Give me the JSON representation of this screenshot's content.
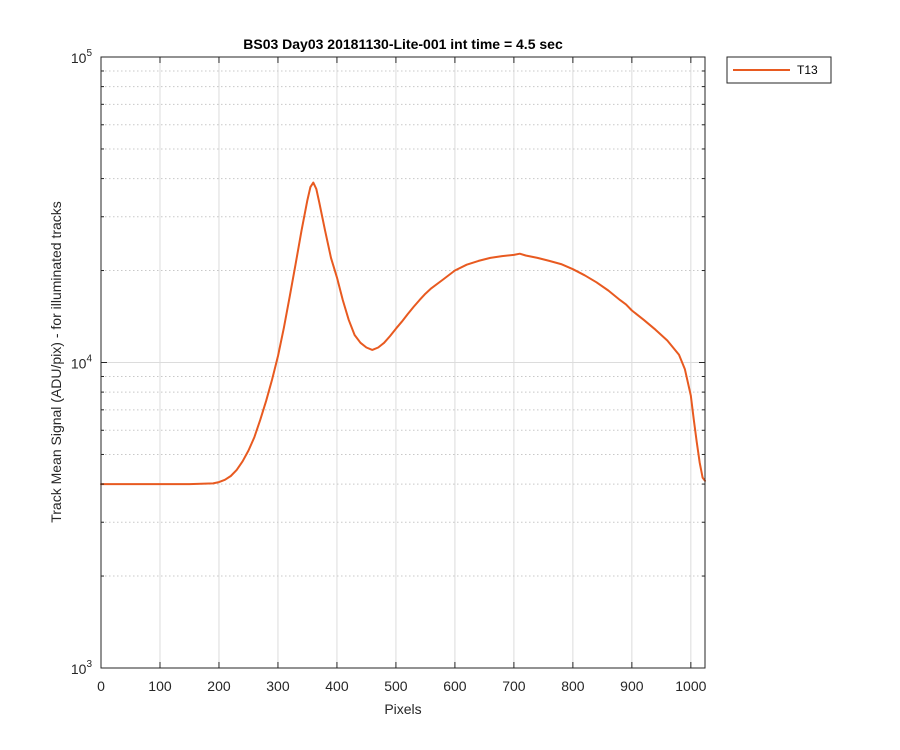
{
  "chart_data": {
    "type": "line",
    "title": "BS03 Day03 20181130-Lite-001 int time = 4.5 sec",
    "xlabel": "Pixels",
    "ylabel": "Track Mean Signal (ADU/pix) - for illuminated tracks",
    "xlim": [
      0,
      1024
    ],
    "ylim": [
      1000,
      100000
    ],
    "yscale": "log",
    "grid": true,
    "minor_grid": true,
    "legend_position": "outside-top-right",
    "x_ticks": [
      "0",
      "100",
      "200",
      "300",
      "400",
      "500",
      "600",
      "700",
      "800",
      "900",
      "1000"
    ],
    "y_ticks": [
      {
        "value": 1000,
        "base": "10",
        "exp": "3"
      },
      {
        "value": 10000,
        "base": "10",
        "exp": "4"
      },
      {
        "value": 100000,
        "base": "10",
        "exp": "5"
      }
    ],
    "series": [
      {
        "name": "T13",
        "color": "#e85a20",
        "x": [
          0,
          50,
          100,
          150,
          190,
          200,
          210,
          220,
          230,
          240,
          250,
          260,
          270,
          280,
          290,
          300,
          310,
          320,
          330,
          340,
          350,
          355,
          360,
          365,
          370,
          380,
          390,
          400,
          410,
          420,
          430,
          440,
          450,
          460,
          470,
          480,
          490,
          500,
          510,
          520,
          530,
          540,
          550,
          560,
          580,
          600,
          620,
          640,
          660,
          680,
          700,
          710,
          720,
          740,
          760,
          780,
          800,
          820,
          840,
          860,
          880,
          890,
          900,
          920,
          940,
          960,
          980,
          990,
          1000,
          1005,
          1010,
          1015,
          1020,
          1024
        ],
        "y": [
          4000,
          4000,
          4000,
          4000,
          4020,
          4060,
          4130,
          4250,
          4450,
          4750,
          5150,
          5700,
          6500,
          7500,
          8800,
          10500,
          13000,
          16500,
          21000,
          27000,
          34000,
          37500,
          38800,
          37000,
          33500,
          27000,
          22000,
          19000,
          16000,
          13800,
          12300,
          11600,
          11200,
          11000,
          11200,
          11600,
          12200,
          12900,
          13600,
          14400,
          15200,
          16000,
          16800,
          17500,
          18700,
          20000,
          20900,
          21500,
          22000,
          22300,
          22500,
          22700,
          22400,
          22000,
          21500,
          21000,
          20200,
          19300,
          18300,
          17200,
          16000,
          15500,
          14800,
          13800,
          12800,
          11800,
          10600,
          9500,
          7800,
          6500,
          5500,
          4700,
          4200,
          4100
        ]
      }
    ]
  }
}
